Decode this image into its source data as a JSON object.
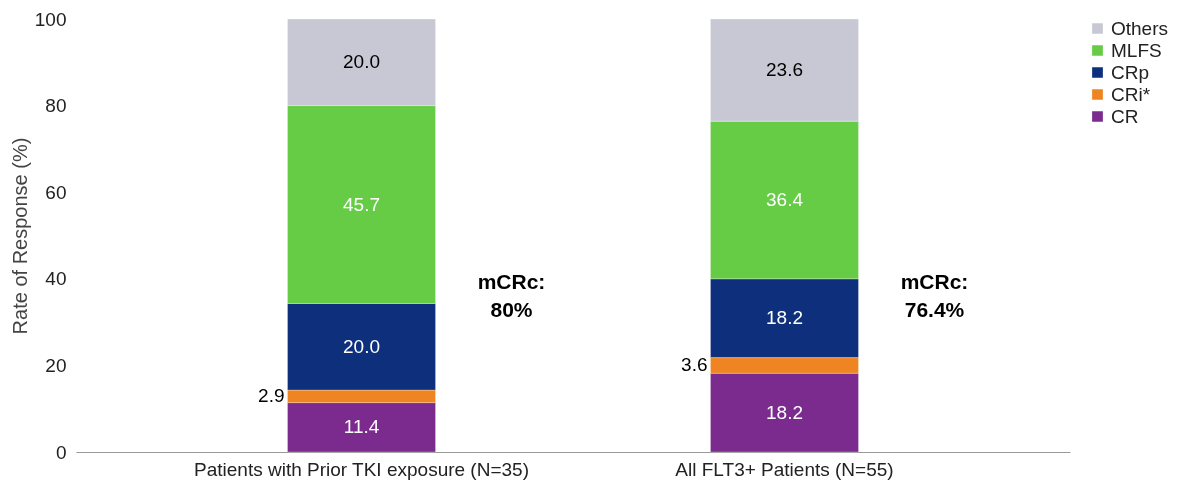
{
  "chart_data": {
    "type": "bar",
    "stacked": true,
    "ylabel": "Rate of Response (%)",
    "categories": [
      "Patients with Prior TKI exposure (N=35)",
      "All FLT3+ Patients (N=55)"
    ],
    "series": [
      {
        "name": "CR",
        "color": "#7b2a8e",
        "values": [
          11.4,
          18.2
        ],
        "value_labels": [
          "11.4",
          "18.2"
        ]
      },
      {
        "name": "CRi*",
        "color": "#ee8422",
        "values": [
          2.9,
          3.6
        ],
        "value_labels": [
          "2.9",
          "3.6"
        ]
      },
      {
        "name": "CRp",
        "color": "#0e2f7c",
        "values": [
          20.0,
          18.2
        ],
        "value_labels": [
          "20.0",
          "18.2"
        ]
      },
      {
        "name": "MLFS",
        "color": "#66cc46",
        "values": [
          45.7,
          36.4
        ],
        "value_labels": [
          "45.7",
          "36.4"
        ]
      },
      {
        "name": "Others",
        "color": "#c8c8d4",
        "values": [
          20.0,
          23.6
        ],
        "value_labels": [
          "20.0",
          "23.6"
        ]
      }
    ],
    "ylim": [
      0,
      100
    ],
    "yticks": [
      0,
      20,
      40,
      60,
      80,
      100
    ],
    "grid": false,
    "legend": "top right",
    "annotations": [
      "mCRc: 80%",
      "mCRc: 76.4%"
    ]
  }
}
